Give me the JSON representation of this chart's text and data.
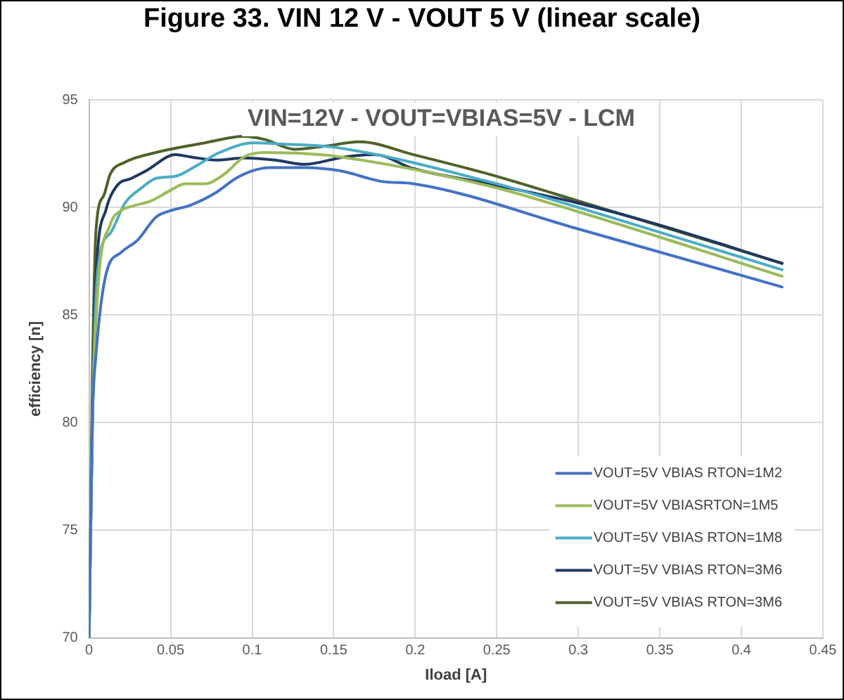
{
  "chart_data": {
    "type": "line",
    "title": "Figure 33. VIN 12 V - VOUT 5 V (linear scale)",
    "subtitle": "VIN=12V - VOUT=VBIAS=5V - LCM",
    "xlabel": "Iload [A]",
    "ylabel": "efficiency [n]",
    "xlim": [
      0,
      0.45
    ],
    "xticks": [
      0,
      0.05,
      0.1,
      0.15,
      0.2,
      0.25,
      0.3,
      0.35,
      0.4,
      0.45
    ],
    "ylim": [
      70,
      95
    ],
    "yticks": [
      70,
      75,
      80,
      85,
      90,
      95
    ],
    "grid": true,
    "legend": "bottom right",
    "marker": "none",
    "line_style": "solid",
    "series": [
      {
        "name": "VOUT=5V VBIAS RTON=1M2",
        "color": "#4472c4",
        "x": [
          0,
          0.002,
          0.0043,
          0.0104,
          0.0195,
          0.03,
          0.041,
          0.05,
          0.062,
          0.078,
          0.09,
          0.1,
          0.111,
          0.132,
          0.154,
          0.18,
          0.199,
          0.3,
          0.425
        ],
        "values": [
          70,
          80,
          83.2,
          86.9,
          87.9,
          88.5,
          89.55,
          89.85,
          90.1,
          90.7,
          91.35,
          91.7,
          91.85,
          91.85,
          91.7,
          91.2,
          91.1,
          89.0,
          86.3
        ]
      },
      {
        "name": "VOUT=5V VBIASRTON=1M5",
        "color": "#9bbb59",
        "x": [
          0,
          0.002,
          0.0055,
          0.013,
          0.0195,
          0.026,
          0.038,
          0.05,
          0.059,
          0.071,
          0.083,
          0.095,
          0.108,
          0.132,
          0.154,
          0.245,
          0.3,
          0.425
        ],
        "values": [
          70,
          80,
          86.3,
          89.2,
          89.85,
          90.05,
          90.3,
          90.8,
          91.1,
          91.1,
          91.55,
          92.35,
          92.55,
          92.5,
          92.35,
          91.0,
          89.8,
          86.8
        ]
      },
      {
        "name": "VOUT=5V VBIAS RTON=1M8",
        "color": "#4bacc6",
        "x": [
          0,
          0.002,
          0.0055,
          0.013,
          0.022,
          0.032,
          0.041,
          0.053,
          0.065,
          0.08,
          0.101,
          0.117,
          0.15,
          0.245,
          0.3,
          0.425
        ],
        "values": [
          70,
          80,
          87.2,
          88.8,
          90.2,
          90.9,
          91.35,
          91.45,
          91.9,
          92.55,
          93.0,
          92.95,
          92.8,
          91.2,
          90.0,
          87.1
        ]
      },
      {
        "name": "VOUT=5V VBIAS RTON=3M6",
        "color": "#1f3864",
        "x": [
          0,
          0.002,
          0.0043,
          0.0104,
          0.017,
          0.026,
          0.035,
          0.053,
          0.062,
          0.078,
          0.095,
          0.114,
          0.132,
          0.157,
          0.175,
          0.199,
          0.245,
          0.3,
          0.349,
          0.425
        ],
        "values": [
          70,
          80,
          86.8,
          89.9,
          91.0,
          91.35,
          91.7,
          92.45,
          92.35,
          92.2,
          92.3,
          92.2,
          92.0,
          92.35,
          92.45,
          91.8,
          91.1,
          90.2,
          89.2,
          87.4
        ]
      },
      {
        "name": "VOUT=5V VBIAS RTON=3M6",
        "color": "#4f6228",
        "x": [
          0,
          0.002,
          0.0043,
          0.009,
          0.013,
          0.022,
          0.041,
          0.071,
          0.095,
          0.108,
          0.126,
          0.145,
          0.166,
          0.199,
          0.245,
          0.3,
          0.425
        ],
        "values": [
          70,
          82,
          89.0,
          90.55,
          91.55,
          92.1,
          92.55,
          93.0,
          93.3,
          93.15,
          92.7,
          92.85,
          93.05,
          92.45,
          91.55,
          90.3,
          87.4
        ]
      }
    ]
  }
}
